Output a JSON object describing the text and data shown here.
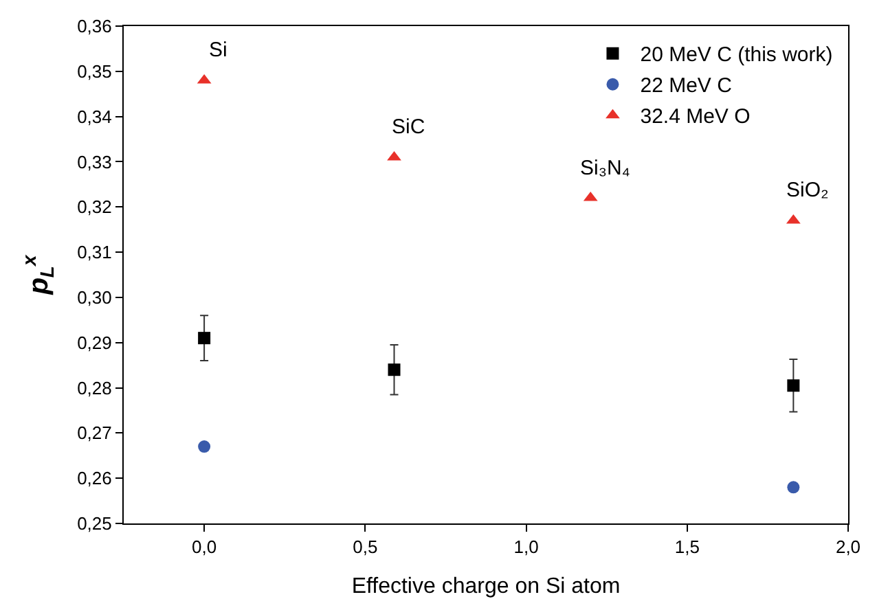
{
  "chart_data": {
    "type": "scatter",
    "xlabel": "Effective charge on Si atom",
    "ylabel": "p$_{L}$$^{x}$",
    "xlim": [
      -0.25,
      2.0
    ],
    "xticks": [
      {
        "value": 0,
        "label": "0,0"
      },
      {
        "value": 0.5,
        "label": "0,5"
      },
      {
        "value": 1.0,
        "label": "1,0"
      },
      {
        "value": 1.5,
        "label": "1,5"
      },
      {
        "value": 2.0,
        "label": "2,0"
      }
    ],
    "ylim": [
      0.25,
      0.36
    ],
    "yticks": [
      {
        "value": 0.25,
        "label": "0,25"
      },
      {
        "value": 0.26,
        "label": "0,26"
      },
      {
        "value": 0.27,
        "label": "0,27"
      },
      {
        "value": 0.28,
        "label": "0,28"
      },
      {
        "value": 0.29,
        "label": "0,29"
      },
      {
        "value": 0.3,
        "label": "0,30"
      },
      {
        "value": 0.31,
        "label": "0,31"
      },
      {
        "value": 0.32,
        "label": "0,32"
      },
      {
        "value": 0.33,
        "label": "0,33"
      },
      {
        "value": 0.34,
        "label": "0,34"
      },
      {
        "value": 0.35,
        "label": "0,35"
      },
      {
        "value": 0.36,
        "label": "0,36"
      }
    ],
    "legend": "top right",
    "series": [
      {
        "name": "20 MeV C (this work)",
        "color": "#000000",
        "marker": "square",
        "x": [
          0,
          0.59,
          1.83
        ],
        "values": [
          0.291,
          0.284,
          0.2805
        ],
        "errors": [
          0.005,
          0.0055,
          0.0058
        ]
      },
      {
        "name": "22 MeV C",
        "color": "#3a5bab",
        "marker": "circle",
        "x": [
          0,
          1.83
        ],
        "values": [
          0.267,
          0.258
        ]
      },
      {
        "name": "32.4 MeV O",
        "color": "#e8312a",
        "marker": "triangle",
        "x": [
          0,
          0.59,
          1.2,
          1.83
        ],
        "values": [
          0.348,
          0.331,
          0.322,
          0.317
        ]
      }
    ],
    "annotations": [
      {
        "text": "Si",
        "x": 0,
        "y": 0.348
      },
      {
        "text": "SiC",
        "x": 0.59,
        "y": 0.331
      },
      {
        "text": "Si₃N₄",
        "x": 1.2,
        "y": 0.322
      },
      {
        "text": "SiO₂",
        "x": 1.83,
        "y": 0.317
      }
    ]
  }
}
